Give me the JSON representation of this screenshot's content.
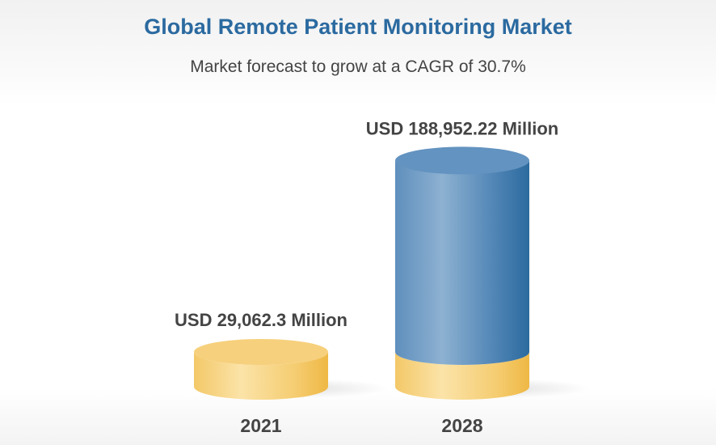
{
  "chart_data": {
    "type": "bar",
    "style": "3d-cylinder",
    "title": "Global Remote Patient Monitoring Market",
    "subtitle": "Market forecast to grow at a CAGR of 30.7%",
    "categories": [
      "2021",
      "2028"
    ],
    "values": [
      29062.3,
      188952.22
    ],
    "value_labels": [
      "USD 29,062.3 Million",
      "USD 188,952.22 Million"
    ],
    "unit": "USD Million",
    "grid": false,
    "colors": {
      "base": "#f4c460",
      "growth": "#4f86b8",
      "title": "#2b6aa0",
      "text": "#444444"
    }
  }
}
